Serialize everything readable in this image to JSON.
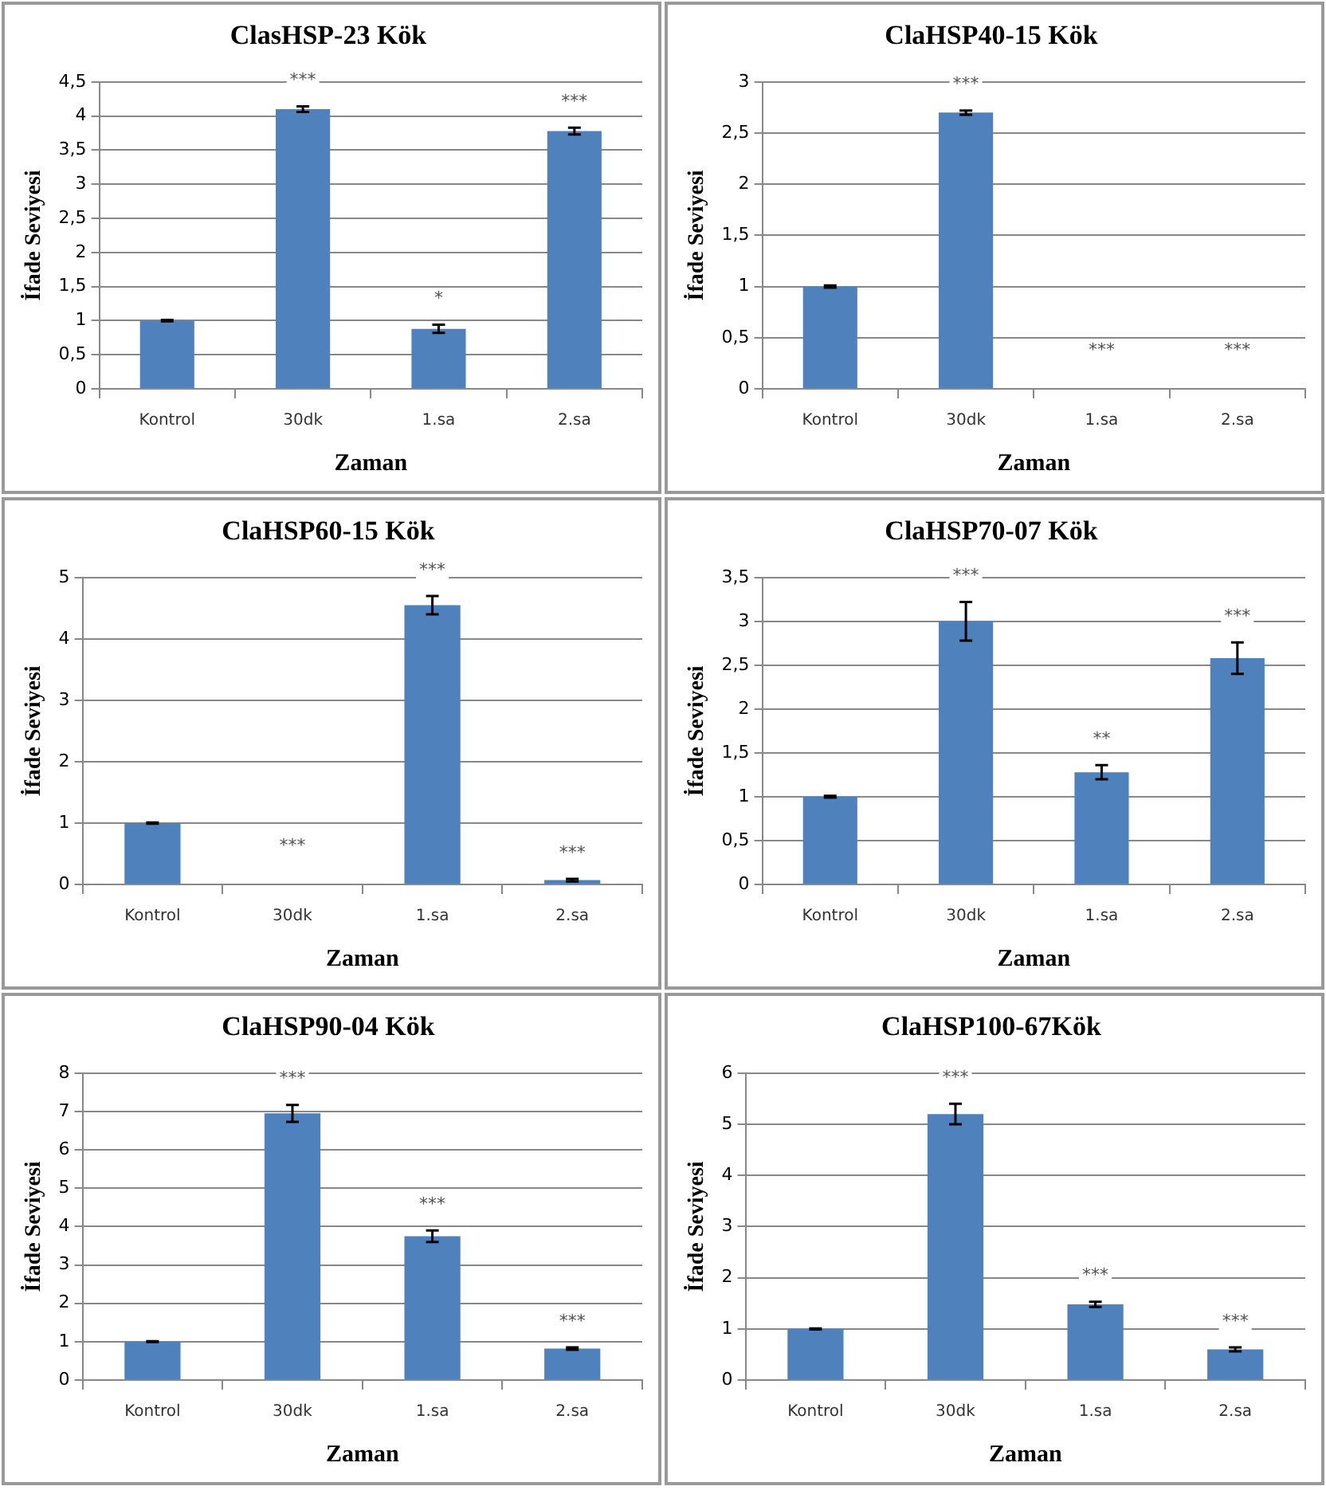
{
  "chart_data": [
    {
      "type": "bar",
      "title": "ClasHSP-23 Kök",
      "xlabel": "Zaman",
      "ylabel": "İfade Seviyesi",
      "categories": [
        "Kontrol",
        "30dk",
        "1.sa",
        "2.sa"
      ],
      "values": [
        1,
        4.1,
        0.88,
        3.78
      ],
      "errors": [
        0.01,
        0.04,
        0.06,
        0.05
      ],
      "color": "#4f81bd",
      "ylim": [
        0,
        4.5
      ],
      "yticks": [
        0,
        {
          "value": 0.5,
          "label": "0,5"
        },
        1,
        {
          "value": 1.5,
          "label": "1,5"
        },
        2,
        {
          "value": 2.5,
          "label": "2,5"
        },
        3,
        {
          "value": 3.5,
          "label": "3,5"
        },
        4,
        {
          "value": 4.5,
          "label": "4,5"
        }
      ],
      "grid": "y",
      "annotations": [
        {
          "text": "***",
          "x": "30dk",
          "y": 4.1
        },
        {
          "text": "*",
          "x": "1.sa",
          "y": 0.88
        },
        {
          "text": "***",
          "x": "2.sa",
          "y": 3.78
        }
      ]
    },
    {
      "type": "bar",
      "title": "ClaHSP40-15 Kök",
      "xlabel": "Zaman",
      "ylabel": "İfade Seviyesi",
      "categories": [
        "Kontrol",
        "30dk",
        "1.sa",
        "2.sa"
      ],
      "values": [
        1,
        2.7,
        0,
        0
      ],
      "errors": [
        0.01,
        0.02,
        null,
        null
      ],
      "color": "#4f81bd",
      "ylim": [
        0,
        3
      ],
      "yticks": [
        0,
        {
          "value": 0.5,
          "label": "0,5"
        },
        1,
        {
          "value": 1.5,
          "label": "1,5"
        },
        2,
        {
          "value": 2.5,
          "label": "2,5"
        },
        3
      ],
      "grid": "y",
      "annotations": [
        {
          "text": "***",
          "x": "30dk",
          "y": 2.7
        },
        {
          "text": "***",
          "x": "1.sa",
          "y": 0
        },
        {
          "text": "***",
          "x": "2.sa",
          "y": 0
        }
      ]
    },
    {
      "type": "bar",
      "title": "ClaHSP60-15 Kök",
      "xlabel": "Zaman",
      "ylabel": "İfade Seviyesi",
      "categories": [
        "Kontrol",
        "30dk",
        "1.sa",
        "2.sa"
      ],
      "values": [
        1,
        0,
        4.55,
        0.07
      ],
      "errors": [
        0.01,
        null,
        0.15,
        0.02
      ],
      "color": "#4f81bd",
      "ylim": [
        0,
        5
      ],
      "yticks": [
        0,
        1,
        2,
        3,
        4,
        5
      ],
      "grid": "y",
      "annotations": [
        {
          "text": "***",
          "x": "30dk",
          "y": 0
        },
        {
          "text": "***",
          "x": "1.sa",
          "y": 4.55
        },
        {
          "text": "***",
          "x": "2.sa",
          "y": 0.07
        }
      ]
    },
    {
      "type": "bar",
      "title": "ClaHSP70-07 Kök",
      "xlabel": "Zaman",
      "ylabel": "İfade Seviyesi",
      "categories": [
        "Kontrol",
        "30dk",
        "1.sa",
        "2.sa"
      ],
      "values": [
        1,
        3,
        1.28,
        2.58
      ],
      "errors": [
        0.01,
        0.22,
        0.08,
        0.18
      ],
      "color": "#4f81bd",
      "ylim": [
        0,
        3.5
      ],
      "yticks": [
        0,
        {
          "value": 0.5,
          "label": "0,5"
        },
        1,
        {
          "value": 1.5,
          "label": "1,5"
        },
        2,
        {
          "value": 2.5,
          "label": "2,5"
        },
        3,
        {
          "value": 3.5,
          "label": "3,5"
        }
      ],
      "grid": "y",
      "annotations": [
        {
          "text": "***",
          "x": "30dk",
          "y": 3
        },
        {
          "text": "**",
          "x": "1.sa",
          "y": 1.28
        },
        {
          "text": "***",
          "x": "2.sa",
          "y": 2.58
        }
      ]
    },
    {
      "type": "bar",
      "title": "ClaHSP90-04 Kök",
      "xlabel": "Zaman",
      "ylabel": "İfade Seviyesi",
      "categories": [
        "Kontrol",
        "30dk",
        "1.sa",
        "2.sa"
      ],
      "values": [
        1,
        6.95,
        3.75,
        0.82
      ],
      "errors": [
        0.01,
        0.22,
        0.15,
        0.03
      ],
      "color": "#4f81bd",
      "ylim": [
        0,
        8
      ],
      "yticks": [
        0,
        1,
        2,
        3,
        4,
        5,
        6,
        7,
        8
      ],
      "grid": "y",
      "annotations": [
        {
          "text": "***",
          "x": "30dk",
          "y": 6.95
        },
        {
          "text": "***",
          "x": "1.sa",
          "y": 3.75
        },
        {
          "text": "***",
          "x": "2.sa",
          "y": 0.82
        }
      ]
    },
    {
      "type": "bar",
      "title": "ClaHSP100-67Kök",
      "xlabel": "Zaman",
      "ylabel": "İfade Seviyesi",
      "categories": [
        "Kontrol",
        "30dk",
        "1.sa",
        "2.sa"
      ],
      "values": [
        1,
        5.2,
        1.48,
        0.6
      ],
      "errors": [
        0.01,
        0.2,
        0.05,
        0.04
      ],
      "color": "#4f81bd",
      "ylim": [
        0,
        6
      ],
      "yticks": [
        0,
        1,
        2,
        3,
        4,
        5,
        6
      ],
      "grid": "y",
      "annotations": [
        {
          "text": "***",
          "x": "30dk",
          "y": 5.2
        },
        {
          "text": "***",
          "x": "1.sa",
          "y": 1.48
        },
        {
          "text": "***",
          "x": "2.sa",
          "y": 0.6
        }
      ]
    }
  ]
}
